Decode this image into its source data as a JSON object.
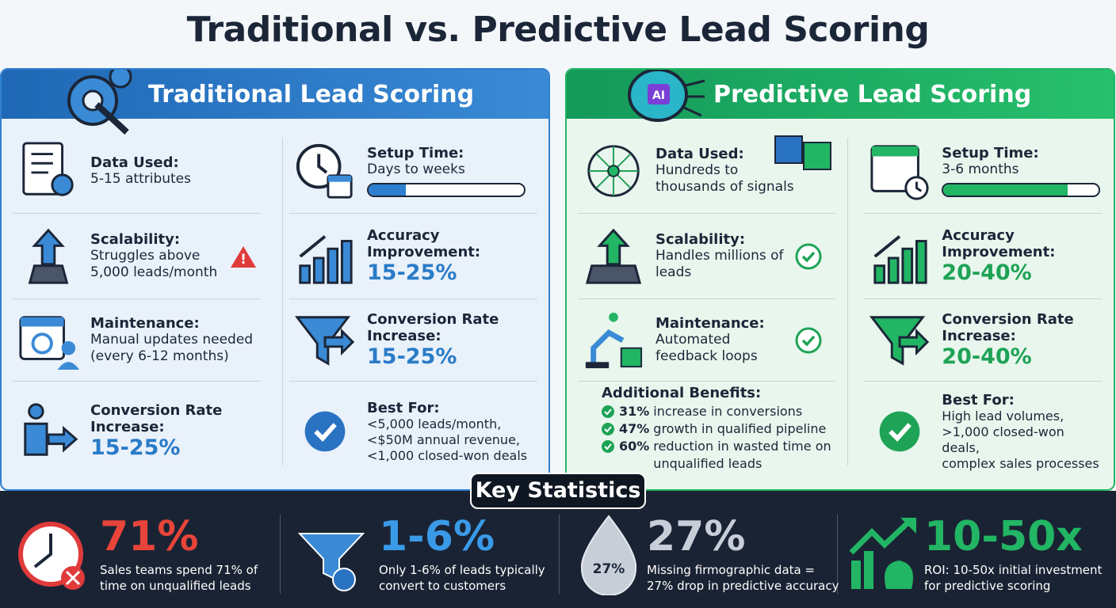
{
  "title": "Traditional vs. Predictive Lead Scoring",
  "traditional": {
    "heading": "Traditional Lead Scoring",
    "data_used": {
      "label": "Data Used:",
      "text": "5-15 attributes"
    },
    "scalability": {
      "label": "Scalability:",
      "text": "Struggles above 5,000 leads/month"
    },
    "maintenance": {
      "label": "Maintenance:",
      "text": "Manual updates needed (every 6-12 months)"
    },
    "conversion_left": {
      "label": "Conversion Rate Increase:",
      "value": "15-25%"
    },
    "setup_time": {
      "label": "Setup Time:",
      "text": "Days to weeks"
    },
    "accuracy": {
      "label": "Accuracy Improvement:",
      "value": "15-25%"
    },
    "conversion_right": {
      "label": "Conversion Rate Increase:",
      "value": "15-25%"
    },
    "best_for": {
      "label": "Best For:",
      "lines": [
        "<5,000 leads/month,",
        "<$50M annual revenue,",
        "<1,000 closed-won deals"
      ]
    }
  },
  "predictive": {
    "heading": "Predictive Lead Scoring",
    "icon_label": "AI",
    "data_used": {
      "label": "Data Used:",
      "text": "Hundreds to thousands of signals"
    },
    "scalability": {
      "label": "Scalability:",
      "text": "Handles millions of leads"
    },
    "maintenance": {
      "label": "Maintenance:",
      "text": "Automated feedback loops"
    },
    "additional_benefits": {
      "label": "Additional Benefits:",
      "items": [
        {
          "value": "31%",
          "text": "increase in conversions"
        },
        {
          "value": "47%",
          "text": "growth in qualified pipeline"
        },
        {
          "value": "60%",
          "text": "reduction in wasted time on unqualified leads"
        }
      ]
    },
    "setup_time": {
      "label": "Setup Time:",
      "text": "3-6 months"
    },
    "accuracy": {
      "label": "Accuracy Improvement:",
      "value": "20-40%"
    },
    "conversion_right": {
      "label": "Conversion Rate Increase:",
      "value": "20-40%"
    },
    "best_for": {
      "label": "Best For:",
      "lines": [
        "High lead volumes,",
        ">1,000 closed-won deals,",
        "complex sales processes"
      ]
    }
  },
  "key_statistics": {
    "heading": "Key Statistics",
    "stats": [
      {
        "value": "71%",
        "text": "Sales teams spend 71% of time on unqualified leads"
      },
      {
        "value": "1-6%",
        "text": "Only 1-6% of leads typically convert to customers"
      },
      {
        "value": "27%",
        "icon_label": "27%",
        "text": "Missing firmographic data = 27% drop in predictive accuracy"
      },
      {
        "value": "10-50x",
        "text": "ROI: 10-50x initial investment for predictive scoring"
      }
    ]
  }
}
